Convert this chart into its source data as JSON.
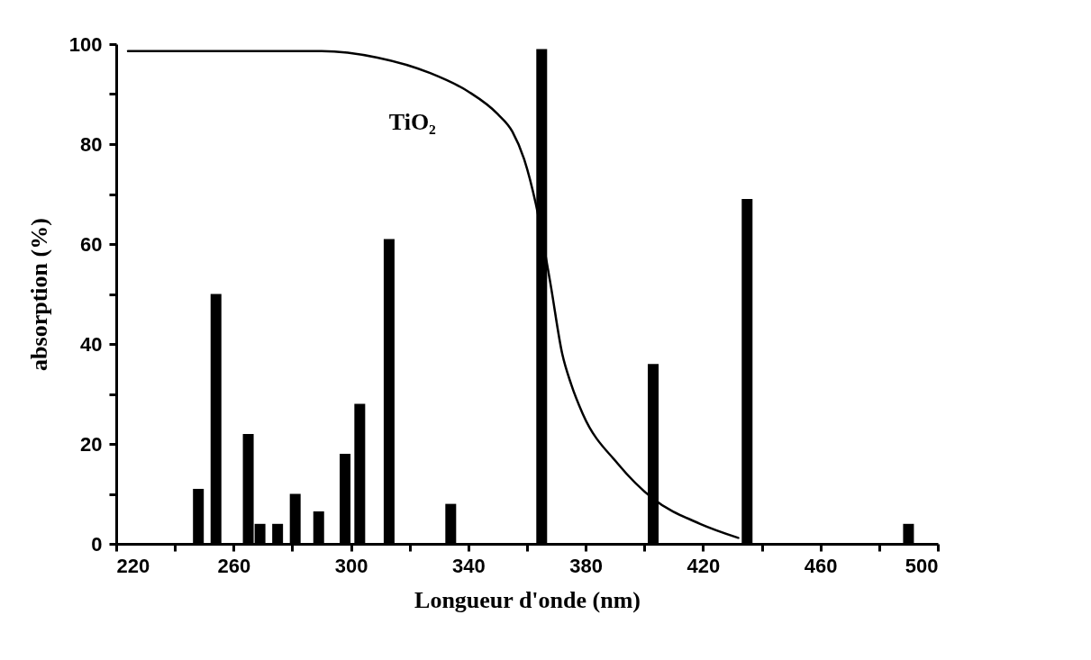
{
  "chart_data": {
    "type": "bar",
    "xlabel": "Longueur d'onde  (nm)",
    "ylabel": "absorption (%)",
    "xlim": [
      220,
      500
    ],
    "ylim": [
      0,
      100
    ],
    "xticks": [
      220,
      {
        "value": 240,
        "label": null
      },
      260,
      {
        "value": 280,
        "label": null
      },
      300,
      {
        "value": 320,
        "label": null
      },
      340,
      {
        "value": 360,
        "label": null
      },
      380,
      {
        "value": 400,
        "label": null
      },
      420,
      {
        "value": 440,
        "label": null
      },
      460,
      {
        "value": 480,
        "label": null
      },
      500
    ],
    "yticks": [
      0,
      {
        "value": 10,
        "label": null
      },
      20,
      {
        "value": 30,
        "label": null
      },
      40,
      {
        "value": 50,
        "label": null
      },
      60,
      {
        "value": 70,
        "label": null
      },
      80,
      {
        "value": 90,
        "label": null
      },
      100
    ],
    "grid": false,
    "series": [
      {
        "color": "#000000",
        "x": [
          248,
          254,
          265,
          269,
          275,
          281,
          289,
          298,
          303,
          313,
          334,
          365,
          403,
          435,
          490
        ],
        "values": [
          11,
          50,
          22,
          4,
          4,
          10,
          6.5,
          18,
          28,
          61,
          8,
          99,
          36,
          69,
          4
        ]
      },
      {
        "type": "line",
        "name": "TiO₂",
        "color": "#000000",
        "x": [
          224,
          290,
          309,
          327,
          340,
          350,
          355,
          359,
          363,
          368,
          372,
          375,
          379,
          391,
          403,
          419,
          432
        ],
        "values": [
          98.6,
          98.6,
          97.3,
          94.2,
          90.5,
          86,
          82.5,
          77,
          68,
          52,
          38,
          32,
          26,
          16,
          9,
          4,
          1.2
        ]
      }
    ]
  }
}
